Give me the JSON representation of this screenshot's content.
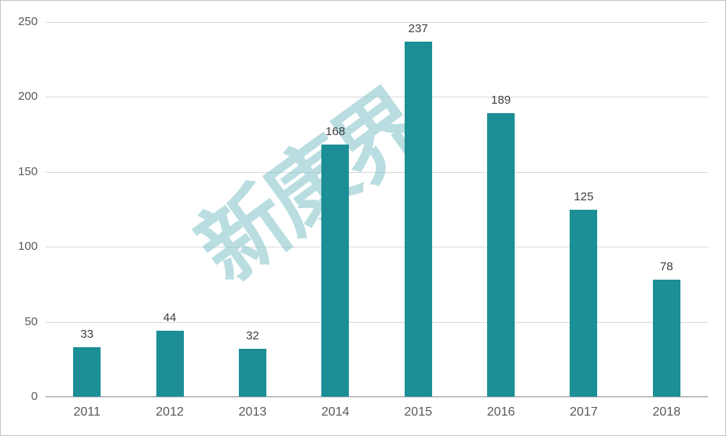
{
  "chart_data": {
    "type": "bar",
    "categories": [
      "2011",
      "2012",
      "2013",
      "2014",
      "2015",
      "2016",
      "2017",
      "2018"
    ],
    "values": [
      33,
      44,
      32,
      168,
      237,
      189,
      125,
      78
    ],
    "data_labels": [
      "33",
      "44",
      "32",
      "168",
      "237",
      "189",
      "125",
      "78"
    ],
    "title": "",
    "xlabel": "",
    "ylabel": "",
    "ylim": [
      0,
      250
    ],
    "yticks": [
      0,
      50,
      100,
      150,
      200,
      250
    ],
    "ytick_labels": [
      "0",
      "50",
      "100",
      "150",
      "200",
      "250"
    ],
    "grid": true,
    "legend": false,
    "bar_color": "#1b8e96",
    "value_label_color": "#3f3f3f",
    "axis_text_color": "#595959",
    "gridline_color": "#d9d9d9",
    "axis_line_color": "#c0c0c0"
  },
  "watermark": {
    "text": "新康界",
    "color": "rgba(139, 199, 203, 0.6)"
  }
}
